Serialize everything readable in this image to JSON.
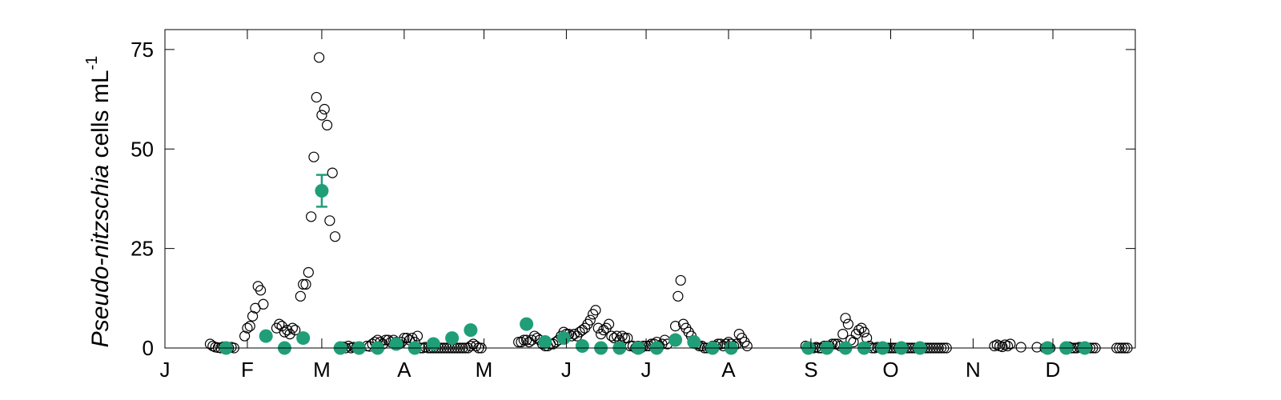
{
  "chart_data": {
    "type": "scatter",
    "title": "",
    "ylabel": {
      "italic": "Pseudo-nitzschia",
      "rest": " cells mL",
      "superscript": "-1"
    },
    "xlabel": "",
    "x_axis": "day of year",
    "xlim": [
      0,
      365
    ],
    "ylim": [
      0,
      80
    ],
    "yticks": [
      0,
      25,
      50,
      75
    ],
    "xtick_labels": [
      {
        "label": "J",
        "day": 0
      },
      {
        "label": "F",
        "day": 31
      },
      {
        "label": "M",
        "day": 59
      },
      {
        "label": "A",
        "day": 90
      },
      {
        "label": "M",
        "day": 120
      },
      {
        "label": "J",
        "day": 151
      },
      {
        "label": "J",
        "day": 181
      },
      {
        "label": "A",
        "day": 212
      },
      {
        "label": "S",
        "day": 243
      },
      {
        "label": "O",
        "day": 273
      },
      {
        "label": "N",
        "day": 304
      },
      {
        "label": "D",
        "day": 334
      }
    ],
    "grid": false,
    "colors": {
      "open_marker": "#000000",
      "mean_marker": "#1f9e78",
      "axis": "#000000"
    },
    "series": [
      {
        "marker": "open-circle",
        "points": [
          [
            17,
            1
          ],
          [
            18,
            0.5
          ],
          [
            19,
            0.2
          ],
          [
            20,
            0.1
          ],
          [
            21,
            0
          ],
          [
            22,
            0.3
          ],
          [
            23,
            0
          ],
          [
            24,
            0
          ],
          [
            25,
            0.2
          ],
          [
            26,
            0
          ],
          [
            30,
            3
          ],
          [
            31,
            5
          ],
          [
            32,
            5.5
          ],
          [
            33,
            8
          ],
          [
            34,
            10
          ],
          [
            35,
            15.5
          ],
          [
            36,
            14.5
          ],
          [
            37,
            11
          ],
          [
            42,
            5
          ],
          [
            43,
            6
          ],
          [
            44,
            5.5
          ],
          [
            45,
            4
          ],
          [
            46,
            4.5
          ],
          [
            47,
            3.5
          ],
          [
            48,
            5
          ],
          [
            49,
            4.5
          ],
          [
            51,
            13
          ],
          [
            52,
            16
          ],
          [
            53,
            16
          ],
          [
            54,
            19
          ],
          [
            55,
            33
          ],
          [
            56,
            48
          ],
          [
            57,
            63
          ],
          [
            58,
            73
          ],
          [
            59,
            58.5
          ],
          [
            60,
            60
          ],
          [
            61,
            56
          ],
          [
            62,
            32
          ],
          [
            63,
            44
          ],
          [
            64,
            28
          ],
          [
            66,
            0
          ],
          [
            67,
            0.3
          ],
          [
            68,
            0
          ],
          [
            69,
            0.5
          ],
          [
            70,
            0
          ],
          [
            71,
            0.2
          ],
          [
            72,
            0.1
          ],
          [
            73,
            0
          ],
          [
            76,
            0.5
          ],
          [
            77,
            0.4
          ],
          [
            78,
            1
          ],
          [
            79,
            1.5
          ],
          [
            80,
            2
          ],
          [
            81,
            1.5
          ],
          [
            82,
            1
          ],
          [
            83,
            2
          ],
          [
            84,
            2
          ],
          [
            85,
            1.5
          ],
          [
            86,
            2
          ],
          [
            87,
            1.5
          ],
          [
            88,
            1
          ],
          [
            89,
            1.5
          ],
          [
            90,
            2.5
          ],
          [
            91,
            2.5
          ],
          [
            92,
            2
          ],
          [
            93,
            2.5
          ],
          [
            94,
            1.5
          ],
          [
            95,
            3
          ],
          [
            96,
            0
          ],
          [
            97,
            0
          ],
          [
            98,
            0.2
          ],
          [
            99,
            0
          ],
          [
            100,
            0
          ],
          [
            101,
            0
          ],
          [
            102,
            0
          ],
          [
            103,
            0
          ],
          [
            104,
            0
          ],
          [
            105,
            0
          ],
          [
            106,
            0
          ],
          [
            107,
            0
          ],
          [
            108,
            0
          ],
          [
            109,
            0
          ],
          [
            110,
            0
          ],
          [
            111,
            0
          ],
          [
            112,
            0
          ],
          [
            113,
            0
          ],
          [
            114,
            0
          ],
          [
            115,
            0.5
          ],
          [
            116,
            1
          ],
          [
            117,
            0.5
          ],
          [
            118,
            0
          ],
          [
            119,
            0
          ],
          [
            133,
            1.5
          ],
          [
            134,
            1.5
          ],
          [
            135,
            2
          ],
          [
            136,
            2
          ],
          [
            137,
            1.5
          ],
          [
            138,
            2
          ],
          [
            139,
            3
          ],
          [
            140,
            2.5
          ],
          [
            141,
            2
          ],
          [
            142,
            1
          ],
          [
            143,
            0.5
          ],
          [
            144,
            0.5
          ],
          [
            145,
            1
          ],
          [
            146,
            1
          ],
          [
            147,
            1.5
          ],
          [
            148,
            2
          ],
          [
            149,
            3
          ],
          [
            150,
            4
          ],
          [
            151,
            3.5
          ],
          [
            152,
            3.5
          ],
          [
            153,
            3
          ],
          [
            154,
            3.5
          ],
          [
            155,
            3
          ],
          [
            156,
            4
          ],
          [
            157,
            4.5
          ],
          [
            158,
            5
          ],
          [
            159,
            6
          ],
          [
            160,
            7
          ],
          [
            161,
            8.5
          ],
          [
            162,
            9.5
          ],
          [
            163,
            5
          ],
          [
            164,
            3.5
          ],
          [
            165,
            4.5
          ],
          [
            166,
            5
          ],
          [
            167,
            6
          ],
          [
            168,
            3
          ],
          [
            169,
            2.5
          ],
          [
            170,
            3
          ],
          [
            171,
            2
          ],
          [
            172,
            3
          ],
          [
            173,
            2.5
          ],
          [
            174,
            2.5
          ],
          [
            175,
            0.5
          ],
          [
            176,
            0.5
          ],
          [
            177,
            0
          ],
          [
            178,
            0.5
          ],
          [
            179,
            0
          ],
          [
            180,
            0.5
          ],
          [
            181,
            0.5
          ],
          [
            182,
            0.5
          ],
          [
            183,
            1
          ],
          [
            184,
            1
          ],
          [
            185,
            1.5
          ],
          [
            186,
            0.5
          ],
          [
            187,
            1
          ],
          [
            188,
            2
          ],
          [
            189,
            1
          ],
          [
            192,
            5.5
          ],
          [
            193,
            13
          ],
          [
            194,
            17
          ],
          [
            195,
            6
          ],
          [
            196,
            5
          ],
          [
            197,
            4
          ],
          [
            198,
            3
          ],
          [
            200,
            1
          ],
          [
            201,
            0.5
          ],
          [
            202,
            0.5
          ],
          [
            203,
            0
          ],
          [
            204,
            0
          ],
          [
            205,
            0
          ],
          [
            206,
            0.5
          ],
          [
            207,
            0.5
          ],
          [
            208,
            1
          ],
          [
            209,
            1
          ],
          [
            210,
            0.5
          ],
          [
            211,
            1
          ],
          [
            212,
            1.5
          ],
          [
            213,
            1
          ],
          [
            214,
            0.5
          ],
          [
            215,
            1
          ],
          [
            216,
            3.5
          ],
          [
            217,
            2.5
          ],
          [
            218,
            1.5
          ],
          [
            219,
            0.5
          ],
          [
            241,
            0.5
          ],
          [
            242,
            0.3
          ],
          [
            243,
            0
          ],
          [
            244,
            0
          ],
          [
            245,
            0.2
          ],
          [
            246,
            0
          ],
          [
            247,
            0
          ],
          [
            248,
            0.5
          ],
          [
            249,
            0.5
          ],
          [
            250,
            0.5
          ],
          [
            251,
            1
          ],
          [
            252,
            1
          ],
          [
            253,
            1
          ],
          [
            254,
            0.5
          ],
          [
            255,
            3.5
          ],
          [
            256,
            7.5
          ],
          [
            257,
            6
          ],
          [
            258,
            2
          ],
          [
            259,
            1.5
          ],
          [
            260,
            3.5
          ],
          [
            261,
            4.5
          ],
          [
            262,
            5
          ],
          [
            263,
            4
          ],
          [
            264,
            2.5
          ],
          [
            265,
            0.5
          ],
          [
            266,
            0
          ],
          [
            267,
            0
          ],
          [
            268,
            0.2
          ],
          [
            269,
            0
          ],
          [
            270,
            0
          ],
          [
            271,
            0
          ],
          [
            272,
            0
          ],
          [
            273,
            0
          ],
          [
            274,
            0
          ],
          [
            275,
            0
          ],
          [
            276,
            0
          ],
          [
            277,
            0
          ],
          [
            278,
            0
          ],
          [
            279,
            0
          ],
          [
            280,
            0
          ],
          [
            281,
            0
          ],
          [
            282,
            0
          ],
          [
            283,
            0
          ],
          [
            284,
            0
          ],
          [
            285,
            0
          ],
          [
            286,
            0
          ],
          [
            287,
            0
          ],
          [
            288,
            0
          ],
          [
            289,
            0
          ],
          [
            290,
            0
          ],
          [
            291,
            0
          ],
          [
            292,
            0
          ],
          [
            293,
            0
          ],
          [
            294,
            0
          ],
          [
            312,
            0.5
          ],
          [
            313,
            0.8
          ],
          [
            314,
            0.5
          ],
          [
            315,
            0.3
          ],
          [
            316,
            0.8
          ],
          [
            317,
            0.5
          ],
          [
            318,
            1
          ],
          [
            322,
            0.2
          ],
          [
            328,
            0.2
          ],
          [
            331,
            0
          ],
          [
            333,
            0
          ],
          [
            339,
            0
          ],
          [
            340,
            0.3
          ],
          [
            341,
            0
          ],
          [
            342,
            0
          ],
          [
            343,
            0
          ],
          [
            344,
            0.2
          ],
          [
            345,
            0
          ],
          [
            346,
            0
          ],
          [
            347,
            0
          ],
          [
            348,
            0
          ],
          [
            349,
            0
          ],
          [
            350,
            0
          ],
          [
            358,
            0
          ],
          [
            359,
            0
          ],
          [
            360,
            0
          ],
          [
            361,
            0
          ],
          [
            362,
            0
          ]
        ]
      },
      {
        "marker": "filled-circle",
        "points": [
          [
            23,
            0
          ],
          [
            38,
            3
          ],
          [
            45,
            0
          ],
          [
            52,
            2.5
          ],
          [
            66,
            0
          ],
          [
            73,
            0
          ],
          [
            80,
            0
          ],
          [
            87,
            1
          ],
          [
            94,
            0
          ],
          [
            101,
            1
          ],
          [
            108,
            2.5
          ],
          [
            115,
            4.5
          ],
          [
            136,
            6
          ],
          [
            143,
            1.5
          ],
          [
            150,
            2.5
          ],
          [
            157,
            0.5
          ],
          [
            164,
            0
          ],
          [
            171,
            0
          ],
          [
            178,
            0
          ],
          [
            185,
            0
          ],
          [
            192,
            2
          ],
          [
            199,
            1.5
          ],
          [
            206,
            0
          ],
          [
            213,
            0
          ],
          [
            242,
            0
          ],
          [
            249,
            0
          ],
          [
            256,
            0
          ],
          [
            263,
            0
          ],
          [
            270,
            0
          ],
          [
            277,
            0
          ],
          [
            284,
            0
          ],
          [
            332,
            0
          ],
          [
            339,
            0
          ],
          [
            346,
            0
          ]
        ]
      },
      {
        "marker": "filled-circle-errorbar",
        "points": [
          {
            "x": 59,
            "y": 39.5,
            "ylow": 35.5,
            "yhigh": 43.5
          }
        ]
      }
    ]
  }
}
